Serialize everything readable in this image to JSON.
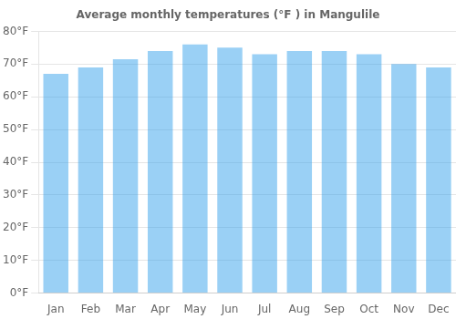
{
  "chart_data": {
    "type": "bar",
    "title": "Average monthly temperatures (°F ) in Mangulile",
    "categories": [
      "Jan",
      "Feb",
      "Mar",
      "Apr",
      "May",
      "Jun",
      "Jul",
      "Aug",
      "Sep",
      "Oct",
      "Nov",
      "Dec"
    ],
    "values": [
      67,
      69,
      71.5,
      74,
      76,
      75,
      73,
      74,
      74,
      73,
      70,
      69
    ],
    "ylim": [
      0,
      80
    ],
    "yticks": [
      {
        "value": 0,
        "label": "0°F"
      },
      {
        "value": 10,
        "label": "10°F"
      },
      {
        "value": 20,
        "label": "20°F"
      },
      {
        "value": 30,
        "label": "30°F"
      },
      {
        "value": 40,
        "label": "40°F"
      },
      {
        "value": 50,
        "label": "50°F"
      },
      {
        "value": 60,
        "label": "60°F"
      },
      {
        "value": 70,
        "label": "70°F"
      },
      {
        "value": 80,
        "label": "80°F"
      }
    ],
    "grid": true
  }
}
